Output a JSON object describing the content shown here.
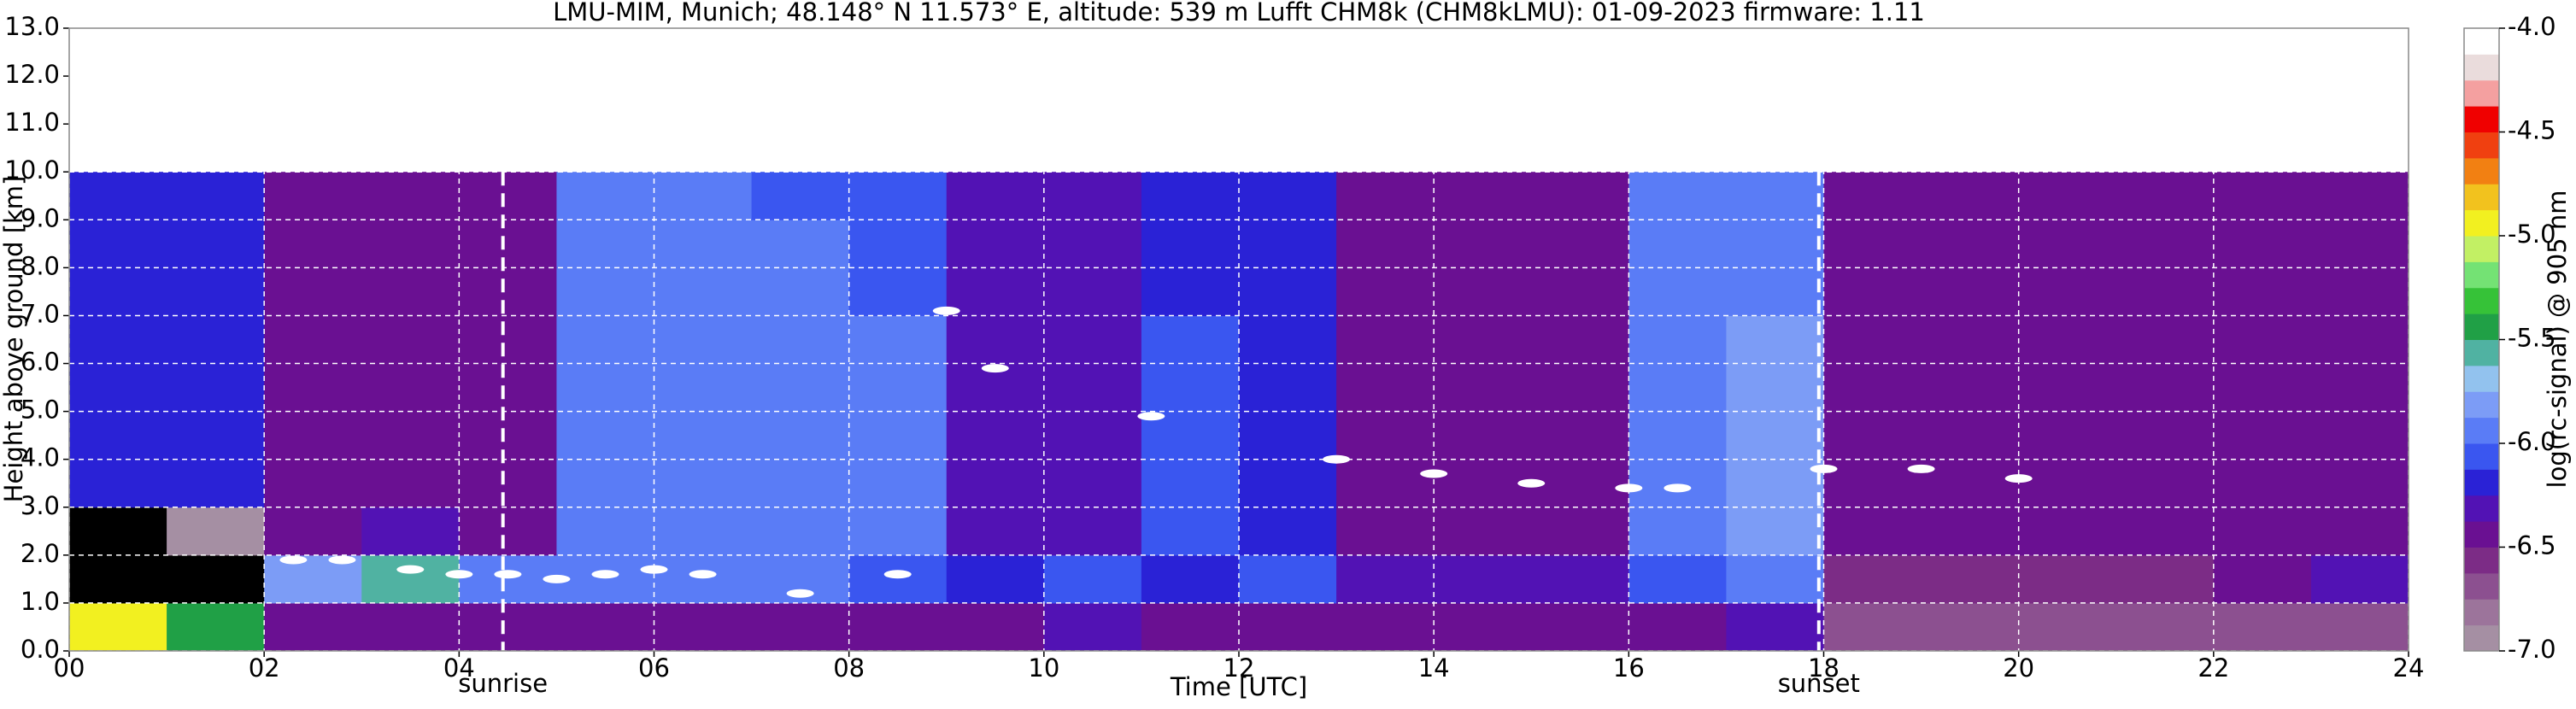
{
  "chart_data": {
    "type": "heatmap",
    "title": "LMU-MIM, Munich; 48.148° N 11.573° E, altitude: 539 m    Lufft CHM8k (CHM8kLMU): 01-09-2023    firmware: 1.11",
    "xlabel": "Time [UTC]",
    "ylabel": "Height above ground [km]",
    "colorbar_label": "log(rc-signal) @ 905 nm",
    "xlim": [
      0,
      24
    ],
    "ylim": [
      0,
      13
    ],
    "xticks": [
      {
        "value": 0,
        "label": "00"
      },
      {
        "value": 2,
        "label": "02"
      },
      {
        "value": 4,
        "label": "04"
      },
      {
        "value": 6,
        "label": "06"
      },
      {
        "value": 8,
        "label": "08"
      },
      {
        "value": 10,
        "label": "10"
      },
      {
        "value": 12,
        "label": "12"
      },
      {
        "value": 14,
        "label": "14"
      },
      {
        "value": 16,
        "label": "16"
      },
      {
        "value": 18,
        "label": "18"
      },
      {
        "value": 20,
        "label": "20"
      },
      {
        "value": 22,
        "label": "22"
      },
      {
        "value": 24,
        "label": "24"
      }
    ],
    "yticks": [
      {
        "value": 0,
        "label": "0.0"
      },
      {
        "value": 1,
        "label": "1.0"
      },
      {
        "value": 2,
        "label": "2.0"
      },
      {
        "value": 3,
        "label": "3.0"
      },
      {
        "value": 4,
        "label": "4.0"
      },
      {
        "value": 5,
        "label": "5.0"
      },
      {
        "value": 6,
        "label": "6.0"
      },
      {
        "value": 7,
        "label": "7.0"
      },
      {
        "value": 8,
        "label": "8.0"
      },
      {
        "value": 9,
        "label": "9.0"
      },
      {
        "value": 10,
        "label": "10.0"
      },
      {
        "value": 11,
        "label": "11.0"
      },
      {
        "value": 12,
        "label": "12.0"
      },
      {
        "value": 13,
        "label": "13.0"
      }
    ],
    "grid": true,
    "grid_color": "#ffffff",
    "clim": [
      -7.0,
      -4.0
    ],
    "cticks": [
      {
        "value": -4,
        "label": "-4.0"
      },
      {
        "value": -4.5,
        "label": "-4.5"
      },
      {
        "value": -5,
        "label": "-5.0"
      },
      {
        "value": -5.5,
        "label": "-5.5"
      },
      {
        "value": -6,
        "label": "-6.0"
      },
      {
        "value": -6.5,
        "label": "-6.5"
      },
      {
        "value": -7,
        "label": "-7.0"
      }
    ],
    "colors": [
      "#a58fa3",
      "#9c749b",
      "#8c5090",
      "#7c2c86",
      "#6a1092",
      "#5212b4",
      "#2a22d6",
      "#3a56f0",
      "#5a7cf6",
      "#7c9cf6",
      "#92c2ee",
      "#50b2a2",
      "#20a046",
      "#36c238",
      "#74e274",
      "#c2f064",
      "#f2f020",
      "#f2c21e",
      "#f28012",
      "#f04010",
      "#f00000",
      "#f4a0a0",
      "#eadcdc",
      "#ffffff"
    ],
    "under_color": "#000000",
    "xbins": [
      0,
      1,
      2,
      3,
      4,
      5,
      6,
      7,
      8,
      9,
      10,
      11,
      12,
      13,
      14,
      15,
      16,
      17,
      18,
      19,
      20,
      21,
      22,
      23,
      24
    ],
    "ybins": [
      0,
      1,
      2,
      3,
      4,
      5,
      6,
      7,
      8,
      9,
      10
    ],
    "z": [
      [
        -5.0,
        -5.5,
        -6.4,
        -6.5,
        -6.5,
        -6.5,
        -6.4,
        -6.4,
        -6.4,
        -6.4,
        -6.3,
        -6.4,
        -6.4,
        -6.5,
        -6.5,
        -6.5,
        -6.4,
        -6.3,
        -6.7,
        -6.7,
        -6.7,
        -6.7,
        -6.7,
        -6.7
      ],
      [
        -7.2,
        -7.2,
        -5.8,
        -5.6,
        -6.0,
        -6.0,
        -5.9,
        -5.9,
        -6.1,
        -6.2,
        -6.1,
        -6.2,
        -6.1,
        -6.3,
        -6.3,
        -6.3,
        -6.1,
        -6.0,
        -6.6,
        -6.6,
        -6.6,
        -6.6,
        -6.4,
        -6.3
      ],
      [
        -7.1,
        -6.9,
        -6.4,
        -6.3,
        -6.4,
        -5.9,
        -5.9,
        -5.9,
        -6.0,
        -6.3,
        -6.3,
        -6.1,
        -6.2,
        -6.4,
        -6.4,
        -6.4,
        -5.9,
        -5.8,
        -6.4,
        -6.4,
        -6.4,
        -6.4,
        -6.4,
        -6.4
      ],
      [
        -6.2,
        -6.2,
        -6.4,
        -6.4,
        -6.4,
        -5.9,
        -5.9,
        -5.9,
        -6.0,
        -6.3,
        -6.3,
        -6.1,
        -6.2,
        -6.4,
        -6.4,
        -6.4,
        -5.9,
        -5.8,
        -6.4,
        -6.4,
        -6.4,
        -6.4,
        -6.4,
        -6.4
      ],
      [
        -6.2,
        -6.2,
        -6.4,
        -6.4,
        -6.4,
        -5.9,
        -5.9,
        -5.9,
        -6.0,
        -6.3,
        -6.3,
        -6.1,
        -6.2,
        -6.4,
        -6.4,
        -6.4,
        -5.9,
        -5.8,
        -6.4,
        -6.4,
        -6.4,
        -6.4,
        -6.4,
        -6.4
      ],
      [
        -6.2,
        -6.2,
        -6.4,
        -6.4,
        -6.4,
        -5.9,
        -5.9,
        -5.9,
        -6.0,
        -6.3,
        -6.3,
        -6.1,
        -6.2,
        -6.4,
        -6.4,
        -6.4,
        -5.9,
        -5.8,
        -6.4,
        -6.4,
        -6.4,
        -6.4,
        -6.4,
        -6.4
      ],
      [
        -6.2,
        -6.2,
        -6.4,
        -6.4,
        -6.4,
        -5.9,
        -5.9,
        -6.0,
        -6.0,
        -6.3,
        -6.3,
        -6.1,
        -6.2,
        -6.4,
        -6.4,
        -6.4,
        -5.9,
        -5.8,
        -6.4,
        -6.4,
        -6.4,
        -6.4,
        -6.4,
        -6.4
      ],
      [
        -6.2,
        -6.2,
        -6.4,
        -6.4,
        -6.4,
        -6.0,
        -6.0,
        -6.0,
        -6.1,
        -6.3,
        -6.3,
        -6.2,
        -6.2,
        -6.4,
        -6.4,
        -6.4,
        -6.0,
        -5.9,
        -6.4,
        -6.4,
        -6.4,
        -6.4,
        -6.4,
        -6.4
      ],
      [
        -6.2,
        -6.2,
        -6.4,
        -6.4,
        -6.4,
        -6.0,
        -6.0,
        -6.0,
        -6.1,
        -6.3,
        -6.3,
        -6.2,
        -6.2,
        -6.4,
        -6.4,
        -6.4,
        -6.0,
        -5.9,
        -6.4,
        -6.4,
        -6.4,
        -6.4,
        -6.4,
        -6.4
      ],
      [
        -6.2,
        -6.2,
        -6.4,
        -6.4,
        -6.4,
        -6.0,
        -6.0,
        -6.1,
        -6.1,
        -6.3,
        -6.3,
        -6.2,
        -6.2,
        -6.4,
        -6.4,
        -6.4,
        -6.0,
        -5.9,
        -6.4,
        -6.4,
        -6.4,
        -6.4,
        -6.4,
        -6.4
      ]
    ],
    "series": [
      {
        "color": "#ffffff",
        "x": [
          2.3,
          2.8,
          3.5,
          4.0,
          4.5,
          5.0,
          5.5,
          6.0,
          6.5,
          7.5,
          8.5,
          9.0,
          9.5,
          11.1,
          13.0,
          14.0,
          15.0,
          16.0,
          16.5,
          18.0,
          19.0,
          20.0
        ],
        "values": [
          1.9,
          1.9,
          1.7,
          1.6,
          1.6,
          1.5,
          1.6,
          1.7,
          1.6,
          1.2,
          1.6,
          7.1,
          5.9,
          4.9,
          4.0,
          3.7,
          3.5,
          3.4,
          3.4,
          3.8,
          3.8,
          3.6
        ]
      }
    ],
    "annotations": [
      {
        "x": 4.45,
        "label": "sunrise"
      },
      {
        "x": 17.95,
        "label": "sunset"
      }
    ]
  }
}
